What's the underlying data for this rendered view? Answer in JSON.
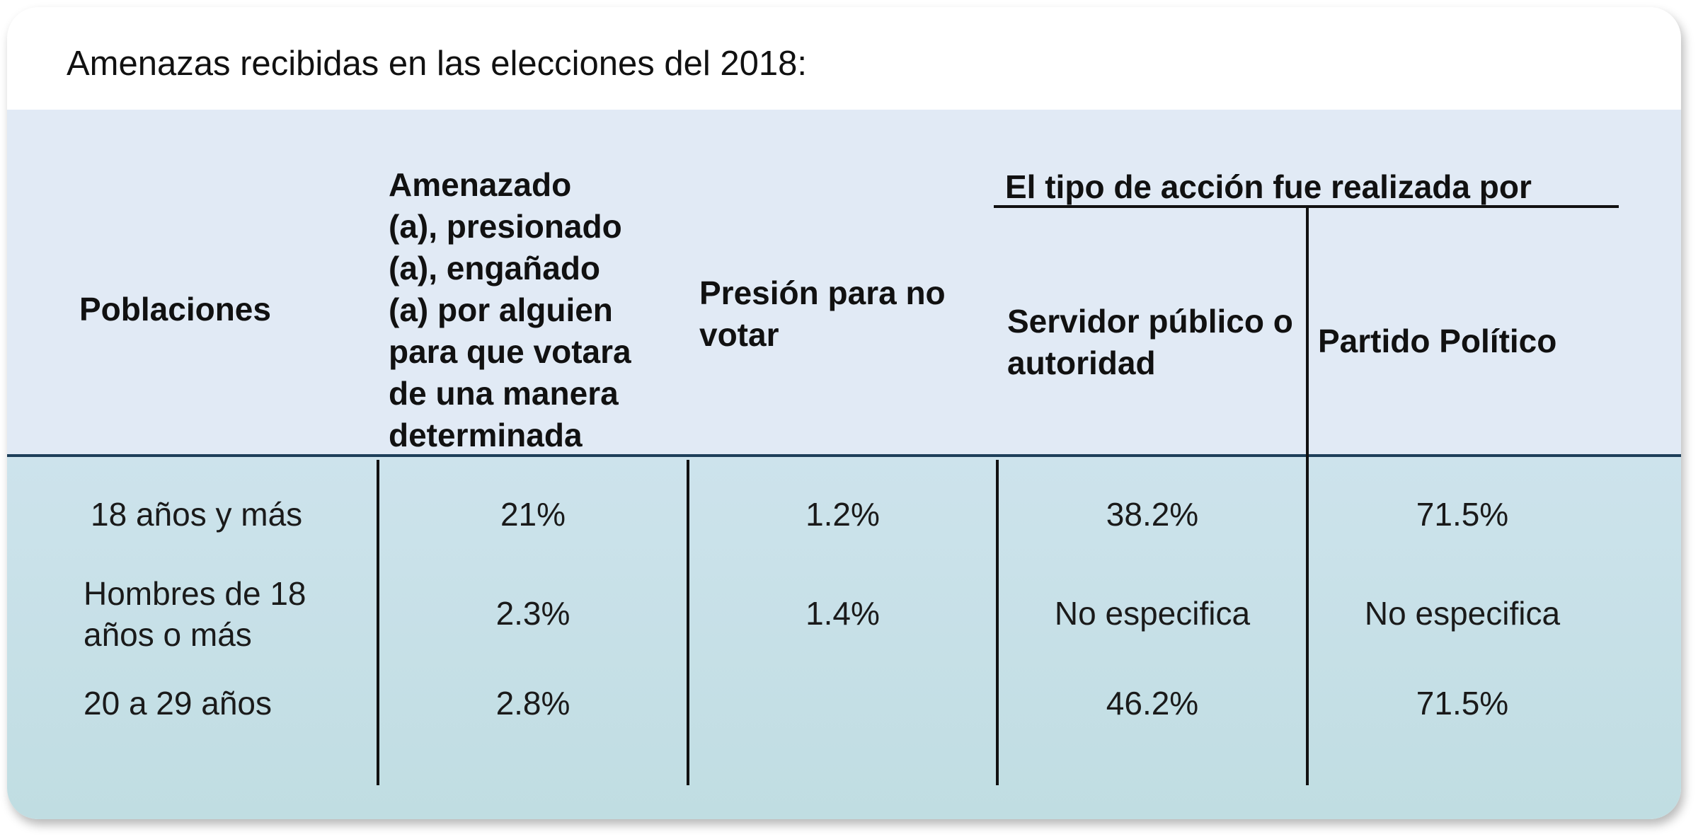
{
  "title": "Amenazas recibidas en las elecciones del 2018:",
  "headers": {
    "poblaciones": "Poblaciones",
    "amenazado": "Amenazado (a), presionado (a), engañado (a) por alguien para que votara de una manera determinada",
    "presion": "Presión para no votar",
    "group": "El tipo de acción fue realizada por",
    "servidor": "Servidor público o autoridad",
    "partido": "Partido Político"
  },
  "rows": [
    {
      "poblacion": "18 años y más",
      "amenazado": "21%",
      "presion": "1.2%",
      "servidor": "38.2%",
      "partido": "71.5%"
    },
    {
      "poblacion": "Hombres de 18\naños o más",
      "amenazado": "2.3%",
      "presion": "1.4%",
      "servidor": "No especifica",
      "partido": "No especifica"
    },
    {
      "poblacion": "20 a 29 años",
      "amenazado": "2.8%",
      "presion": "",
      "servidor": "46.2%",
      "partido": "71.5%"
    }
  ],
  "colors": {
    "header_bg": "#e1eaf5",
    "body_bg": "#c8e0e8",
    "divider": "#1e3f5a"
  }
}
